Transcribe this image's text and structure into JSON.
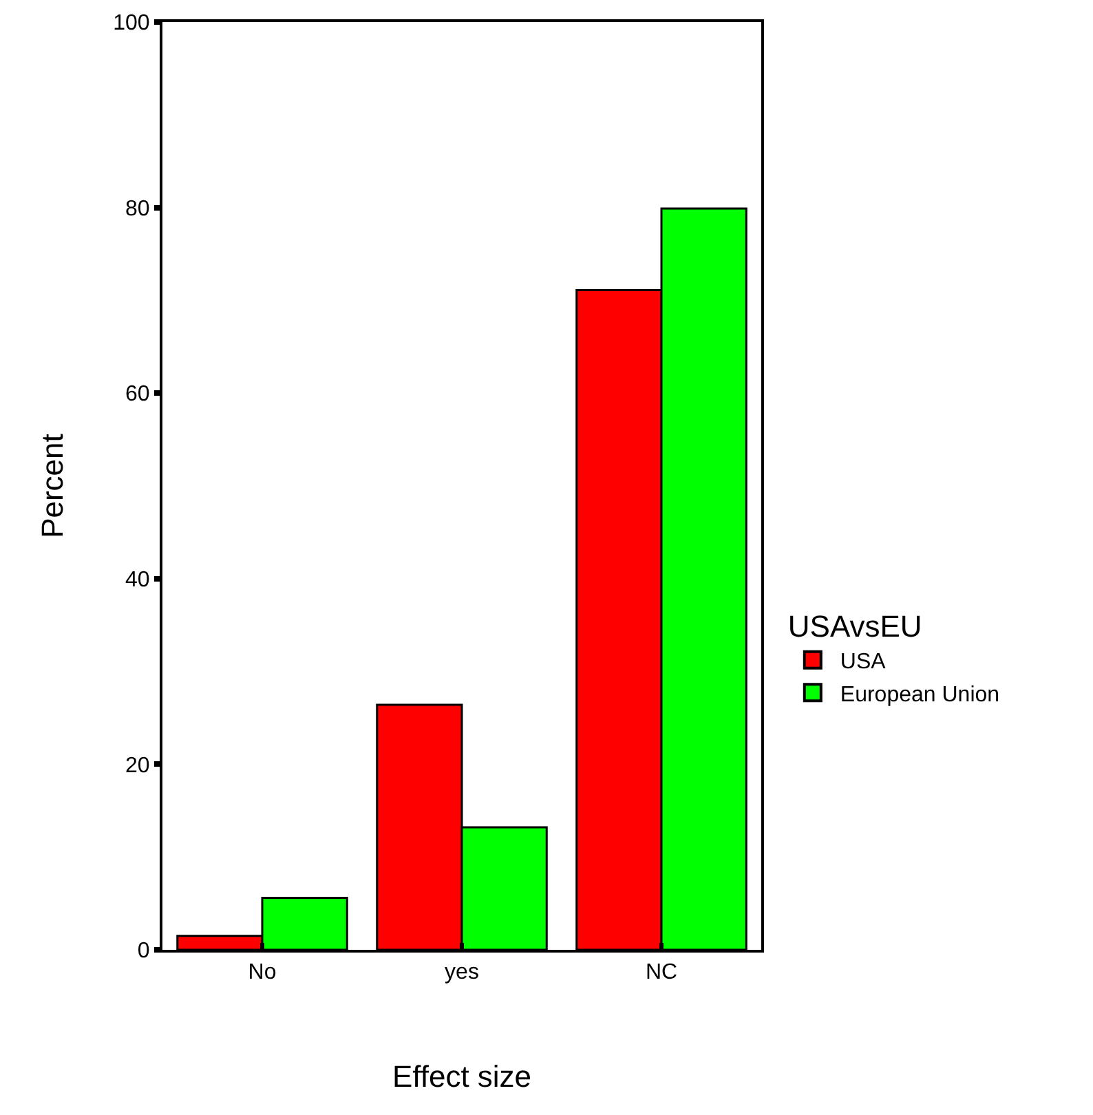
{
  "chart_data": {
    "type": "bar",
    "xlabel": "Effect size",
    "ylabel": "Percent",
    "legend_title": "USAvsEU",
    "categories": [
      "No",
      "yes",
      "NC"
    ],
    "series": [
      {
        "name": "USA",
        "color": "#ff0000",
        "values": [
          1.5,
          26.4,
          71.1
        ]
      },
      {
        "name": "European Union",
        "color": "#00ff00",
        "values": [
          5.6,
          13.2,
          79.9
        ]
      }
    ],
    "ylim": [
      0,
      100
    ],
    "yticks": [
      0,
      20,
      40,
      60,
      80,
      100
    ],
    "grid": false,
    "legend": "right"
  }
}
